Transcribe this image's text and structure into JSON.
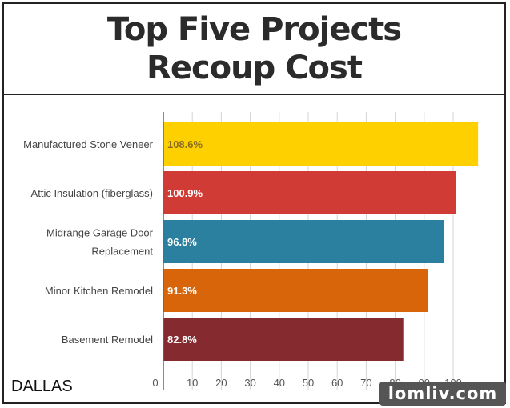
{
  "chart_data": {
    "type": "bar",
    "orientation": "horizontal",
    "title_lines": [
      "Top Five Projects",
      "Recoup Cost"
    ],
    "categories": [
      [
        "Manufactured Stone Veneer"
      ],
      [
        "Attic Insulation (fiberglass)"
      ],
      [
        "Midrange Garage Door",
        "Replacement"
      ],
      [
        "Minor Kitchen Remodel"
      ],
      [
        "Basement Remodel"
      ]
    ],
    "values": [
      108.6,
      100.9,
      96.8,
      91.3,
      82.8
    ],
    "value_labels": [
      "108.6%",
      "100.9%",
      "96.8%",
      "91.3%",
      "82.8%"
    ],
    "bar_colors": [
      "#FFD000",
      "#D13B35",
      "#2A809E",
      "#D8650A",
      "#852A2F"
    ],
    "value_label_colors": [
      "#8a6d1f",
      "#ffffff",
      "#ffffff",
      "#ffffff",
      "#ffffff"
    ],
    "xlim": [
      0,
      110
    ],
    "xticks": [
      0,
      10,
      20,
      30,
      40,
      50,
      60,
      70,
      80,
      90,
      100
    ],
    "grid": true
  },
  "region_label": "DALLAS",
  "watermark": "lomliv.com"
}
